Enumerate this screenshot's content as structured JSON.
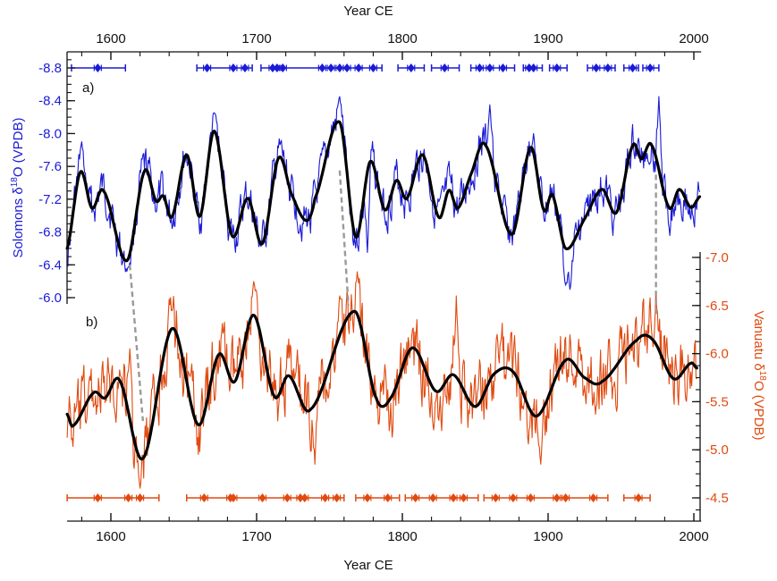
{
  "chart_data": {
    "type": "line",
    "x_axis": {
      "label": "Year CE",
      "range": [
        1570,
        2005
      ],
      "ticks": [
        1600,
        1700,
        1800,
        1900,
        2000
      ],
      "tick_labels": [
        "1600",
        "1700",
        "1800",
        "1900",
        "2000"
      ],
      "minor_step": 20
    },
    "panels": [
      {
        "id": "a",
        "panel_label": "a)",
        "ylabel_pre": "Solomons δ",
        "ylabel_sup": "18",
        "ylabel_post": "O (VPDB)",
        "axis_side": "left",
        "color": "#1a1ad6",
        "yrange": [
          -8.8,
          -6.0
        ],
        "inverted": true,
        "ticks": [
          -8.8,
          -8.4,
          -8.0,
          -7.6,
          -7.2,
          -6.8,
          -6.4,
          -6.0
        ],
        "tick_labels": [
          "-8.8",
          "-8.4",
          "-8.0",
          "-7.6",
          "-7.2",
          "-6.8",
          "-6.4",
          "-6.0"
        ],
        "smoothed": {
          "name": "Solomons smoothed",
          "color": "#000000",
          "x": [
            1570,
            1579,
            1587,
            1595,
            1611,
            1623,
            1631,
            1636,
            1642,
            1652,
            1661,
            1671,
            1683,
            1694,
            1704,
            1715,
            1724,
            1734,
            1740,
            1757,
            1768,
            1778,
            1788,
            1796,
            1803,
            1814,
            1825,
            1832,
            1838,
            1847,
            1857,
            1875,
            1888,
            1897,
            1903,
            1912,
            1925,
            1937,
            1947,
            1958,
            1964,
            1971,
            1983,
            1990,
            1998,
            2004
          ],
          "y": [
            -6.6,
            -7.53,
            -7.09,
            -7.3,
            -6.45,
            -7.54,
            -7.18,
            -7.24,
            -6.99,
            -7.74,
            -6.99,
            -8.03,
            -6.76,
            -7.21,
            -6.66,
            -7.7,
            -7.26,
            -6.94,
            -7.21,
            -8.14,
            -6.74,
            -7.66,
            -7.07,
            -7.43,
            -7.21,
            -7.74,
            -6.98,
            -7.31,
            -7.09,
            -7.5,
            -7.86,
            -6.77,
            -7.83,
            -7.07,
            -7.25,
            -6.6,
            -6.96,
            -7.32,
            -7.04,
            -7.85,
            -7.69,
            -7.86,
            -7.1,
            -7.32,
            -7.1,
            -7.23
          ]
        },
        "raw": {
          "name": "Solomons raw",
          "color": "#1a1ad6",
          "noise_amplitude": 0.28,
          "peaks": [
            [
              1580,
              -7.9
            ],
            [
              1611,
              -6.32
            ],
            [
              1671,
              -8.25
            ],
            [
              1757,
              -8.45
            ],
            [
              1776,
              -6.55
            ],
            [
              1860,
              -8.35
            ],
            [
              1912,
              -6.15
            ],
            [
              1915,
              -6.1
            ],
            [
              1976,
              -8.45
            ],
            [
              1890,
              -8.0
            ]
          ]
        },
        "dates": {
          "y_value": -8.8,
          "years": [
            1591,
            1666,
            1684,
            1692,
            1711,
            1714,
            1718,
            1745,
            1751,
            1757,
            1762,
            1770,
            1780,
            1806,
            1829,
            1853,
            1860,
            1869,
            1887,
            1890,
            1906,
            1933,
            1941,
            1958,
            1970
          ],
          "segments": [
            [
              1573,
              1610
            ],
            [
              1659,
              1697
            ],
            [
              1703,
              1786
            ],
            [
              1797,
              1815
            ],
            [
              1820,
              1839
            ],
            [
              1847,
              1877
            ],
            [
              1883,
              1896
            ],
            [
              1901,
              1913
            ],
            [
              1927,
              1946
            ],
            [
              1952,
              1962
            ],
            [
              1965,
              1976
            ]
          ]
        }
      },
      {
        "id": "b",
        "panel_label": "b)",
        "ylabel_pre": "Vanuatu δ",
        "ylabel_sup": "18",
        "ylabel_post": "O (VPDB)",
        "axis_side": "right",
        "color": "#e04a10",
        "yrange": [
          -7.0,
          -4.5
        ],
        "inverted": true,
        "ticks": [
          -7.0,
          -6.5,
          -6.0,
          -5.5,
          -5.0,
          -4.5
        ],
        "tick_labels": [
          "-7.0",
          "-6.5",
          "-6.0",
          "-5.5",
          "-5.0",
          "-4.5"
        ],
        "smoothed": {
          "name": "Vanuatu smoothed",
          "color": "#000000",
          "x": [
            1570,
            1574,
            1588,
            1596,
            1606,
            1622,
            1642,
            1660,
            1674,
            1685,
            1698,
            1712,
            1722,
            1737,
            1767,
            1782,
            1792,
            1807,
            1823,
            1835,
            1850,
            1863,
            1876,
            1892,
            1912,
            1925,
            1937,
            1961,
            1972,
            1986,
            1998,
            2002
          ],
          "y": [
            -5.37,
            -5.25,
            -5.59,
            -5.54,
            -5.72,
            -4.91,
            -6.26,
            -5.26,
            -5.99,
            -5.71,
            -6.4,
            -5.56,
            -5.77,
            -5.42,
            -6.44,
            -5.54,
            -5.54,
            -6.06,
            -5.61,
            -5.78,
            -5.45,
            -5.79,
            -5.81,
            -5.35,
            -5.93,
            -5.75,
            -5.71,
            -6.14,
            -6.14,
            -5.74,
            -5.9,
            -5.85
          ]
        },
        "raw": {
          "name": "Vanuatu raw",
          "color": "#e04a10",
          "noise_amplitude": 0.42,
          "peaks": [
            [
              1620,
              -4.6
            ],
            [
              1613,
              -6.05
            ],
            [
              1698,
              -6.75
            ],
            [
              1757,
              -6.6
            ],
            [
              1769,
              -6.85
            ],
            [
              1740,
              -4.85
            ],
            [
              1895,
              -4.85
            ],
            [
              1837,
              -6.6
            ],
            [
              1974,
              -6.65
            ],
            [
              1865,
              -6.2
            ]
          ]
        },
        "dates": {
          "y_value": -4.5,
          "years": [
            1591,
            1612,
            1620,
            1664,
            1682,
            1684,
            1704,
            1721,
            1730,
            1733,
            1747,
            1755,
            1776,
            1790,
            1809,
            1821,
            1835,
            1842,
            1864,
            1876,
            1888,
            1906,
            1912,
            1931,
            1962
          ],
          "segments": [
            [
              1570,
              1633
            ],
            [
              1652,
              1760
            ],
            [
              1768,
              1798
            ],
            [
              1802,
              1852
            ],
            [
              1856,
              1941
            ],
            [
              1952,
              1970
            ]
          ]
        }
      }
    ],
    "connectors": [
      {
        "from": [
          1613,
          "a",
          -6.4
        ],
        "to": [
          1622,
          "b",
          -5.3
        ]
      },
      {
        "from": [
          1757,
          "a",
          -7.55
        ],
        "to": [
          1763,
          "b",
          -6.5
        ]
      },
      {
        "from": [
          1974,
          "a",
          -7.5
        ],
        "to": [
          1974,
          "b",
          -6.4
        ]
      }
    ]
  }
}
